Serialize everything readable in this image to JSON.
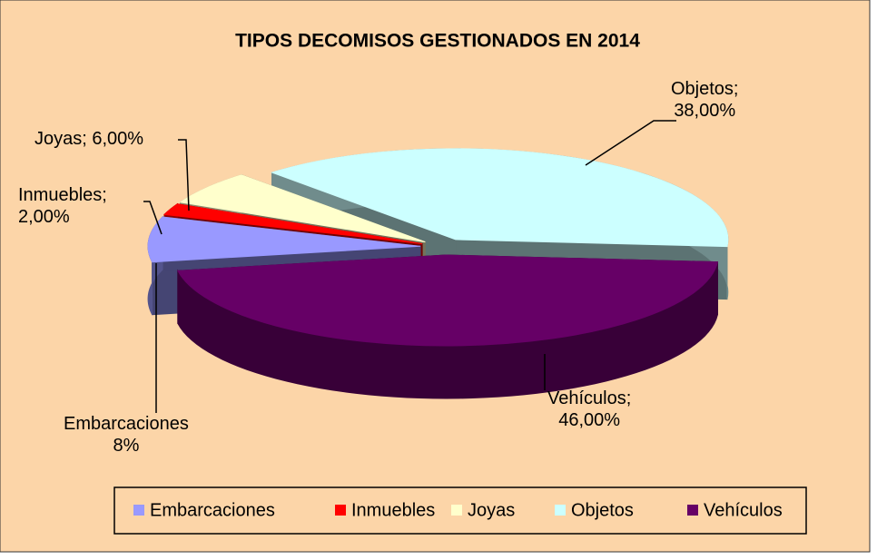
{
  "chart_data": {
    "type": "pie3d",
    "title": "TIPOS DECOMISOS  GESTIONADOS  EN 2014",
    "categories": [
      "Embarcaciones",
      "Inmuebles",
      "Joyas",
      "Objetos",
      "Vehículos"
    ],
    "values": [
      8,
      2,
      6,
      38,
      46
    ],
    "value_labels": [
      "Embarcaciones\n8%",
      "Inmuebles;\n2,00%",
      "Joyas; 6,00%",
      "Objetos;\n38,00%",
      "Vehículos;\n46,00%"
    ],
    "colors": [
      "#9999ff",
      "#ff0000",
      "#ffffcc",
      "#ccffff",
      "#660066"
    ],
    "legend": "bottom"
  }
}
